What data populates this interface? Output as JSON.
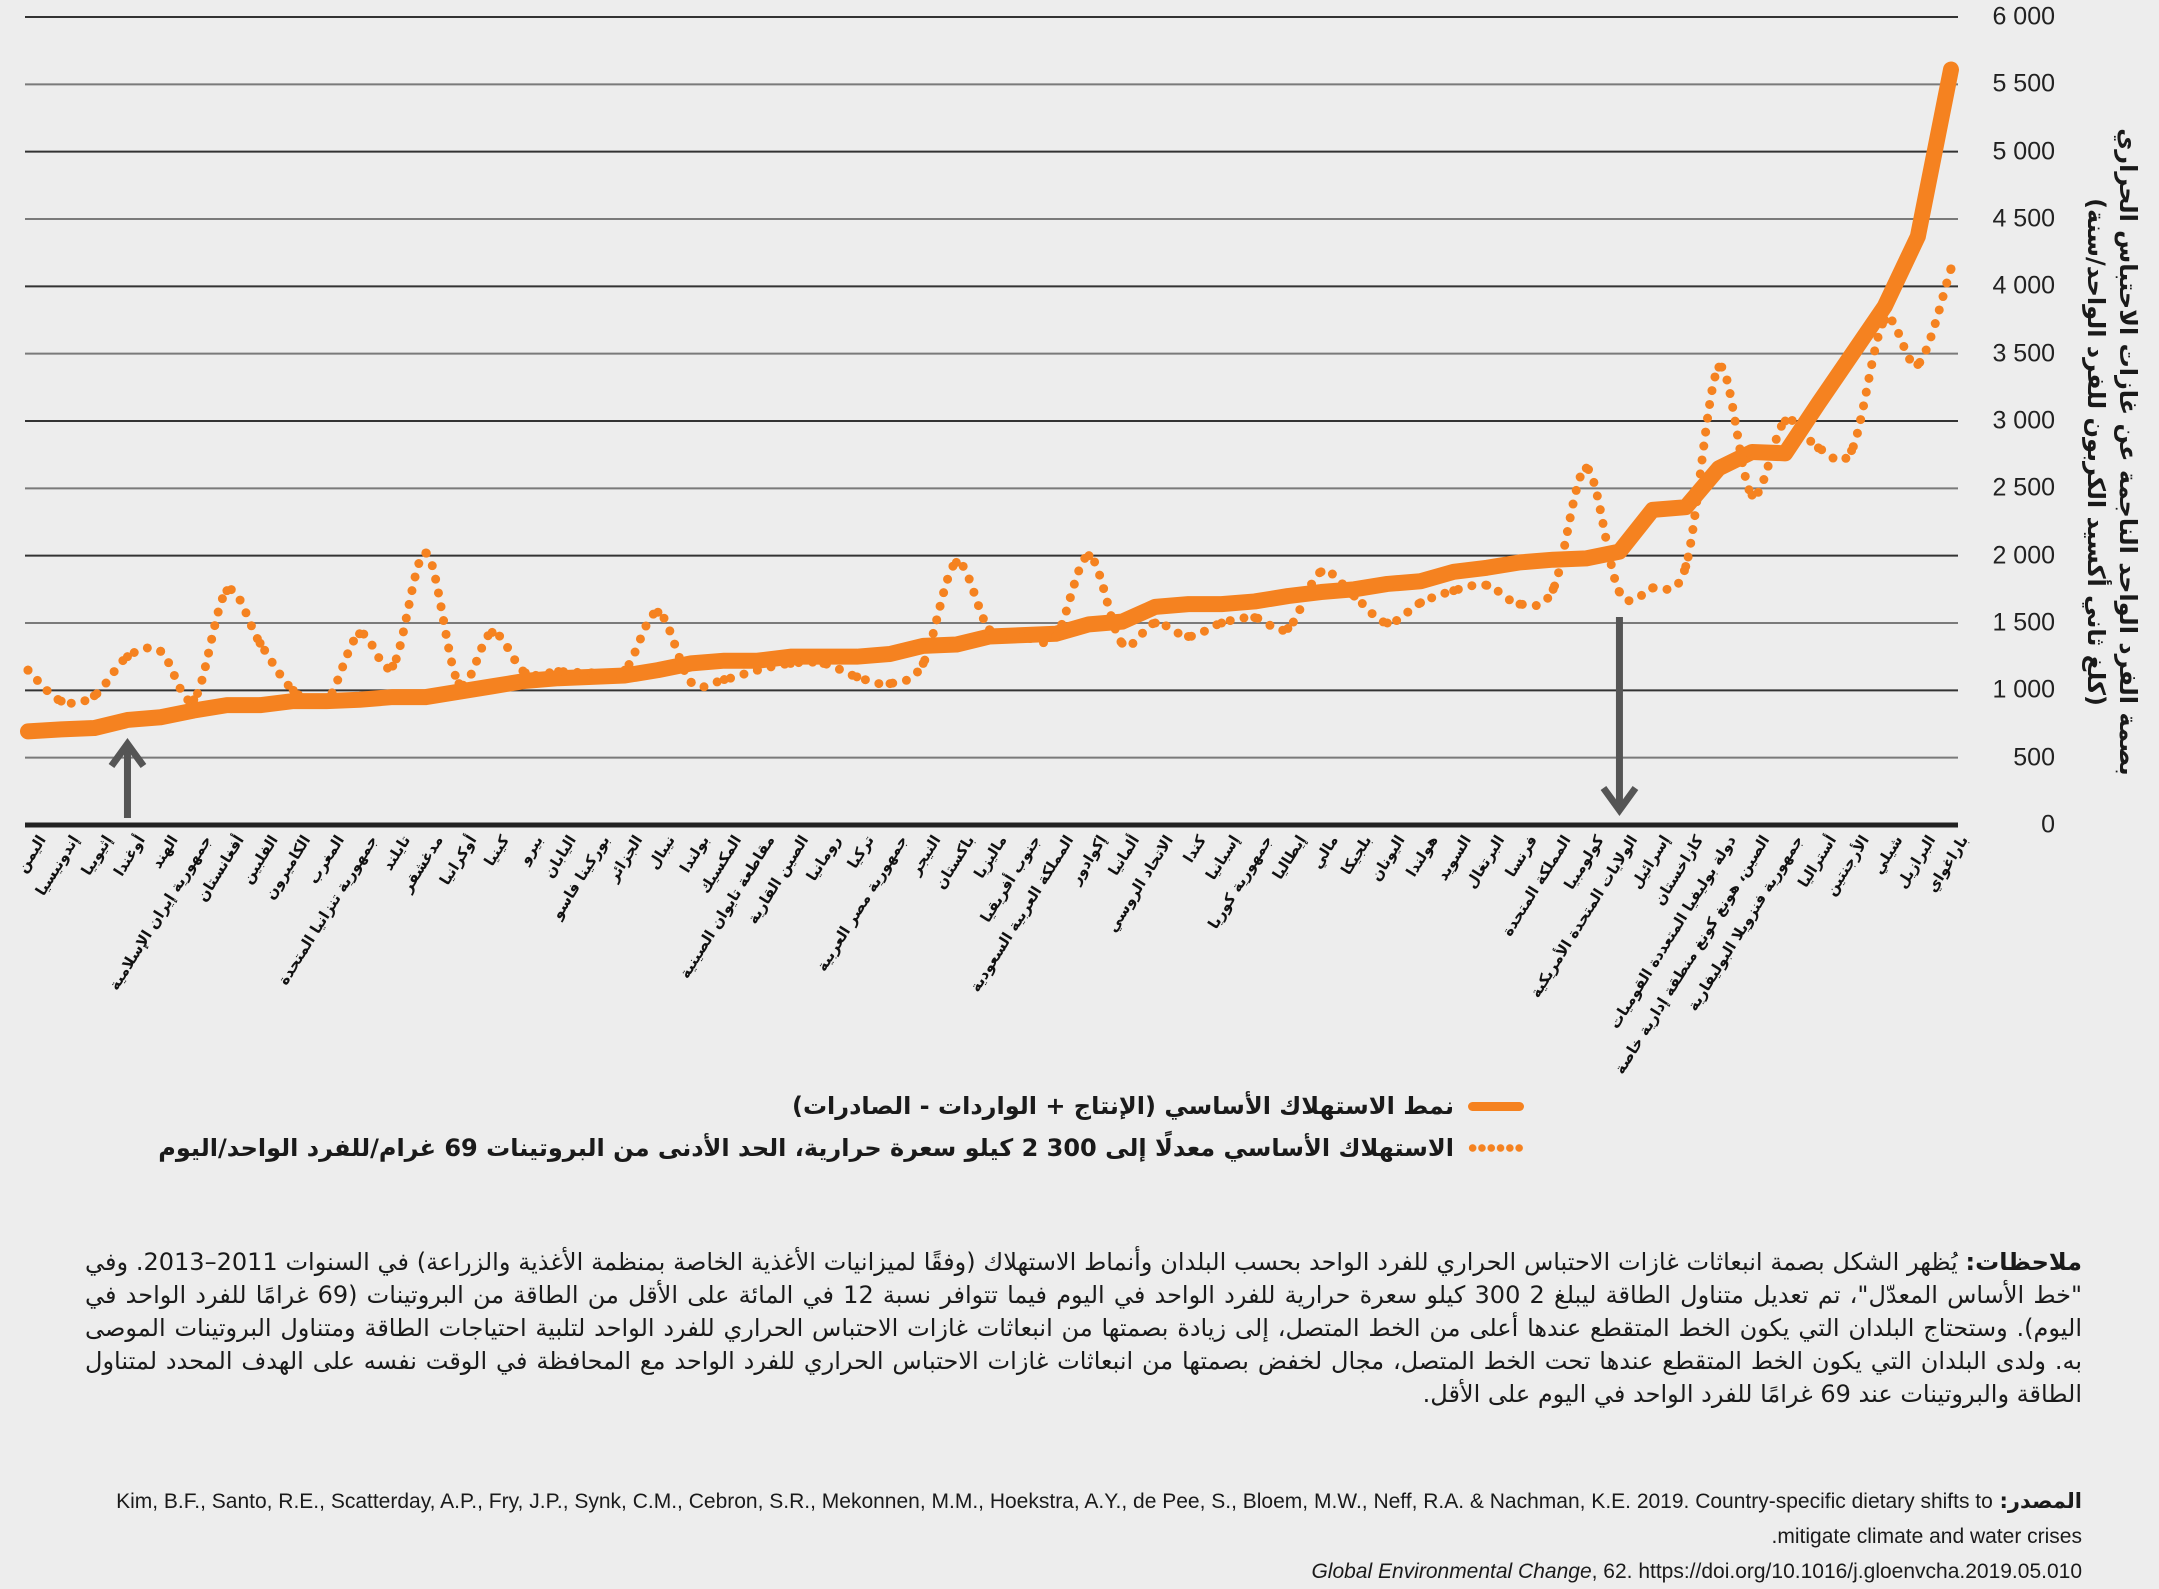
{
  "chart_data": {
    "type": "line",
    "ylabel_line1": "بصمة الفرد الواحد الناجمة عن غازات الاحتباس الحراري",
    "ylabel_line2": "(كلغ ثاني أكسيد الكربون للفرد الواحد/سنة)",
    "ylim": [
      0,
      6000
    ],
    "yticks": [
      "0",
      "500",
      "1 000",
      "1 500",
      "2 000",
      "2 500",
      "3 000",
      "3 500",
      "4 000",
      "4 500",
      "5 000",
      "5 500",
      "6 000"
    ],
    "grid": true,
    "axis_side": "right",
    "legend_placement": "bottom",
    "colors": {
      "series": "#f58220",
      "arrow": "#555555",
      "grid": "#7a7a7a"
    },
    "categories": [
      "اليمن",
      "إندونيسيا",
      "إثيوبيا",
      "أوغندا",
      "الهند",
      "جمهورية إيران الإسلامية",
      "أفغانستان",
      "الفلبين",
      "الكاميرون",
      "المغرب",
      "جمهورية تنزانيا المتحدة",
      "تايلند",
      "مدغشقر",
      "أوكرانيا",
      "كينيا",
      "بيرو",
      "اليابان",
      "بوركينا فاسو",
      "الجزائر",
      "نيبال",
      "بولندا",
      "المكسيك",
      "مقاطعة تايوان الصينية",
      "الصين القارية",
      "رومانيا",
      "تركيا",
      "جمهورية مصر العربية",
      "النيجر",
      "باكستان",
      "ماليزيا",
      "جنوب أفريقيا",
      "المملكة العربية السعودية",
      "إكوادور",
      "ألمانيا",
      "الاتحاد الروسي",
      "كندا",
      "إسبانيا",
      "جمهورية كوريا",
      "إيطاليا",
      "مالي",
      "بلجيكا",
      "اليونان",
      "هولندا",
      "السويد",
      "البرتغال",
      "فرنسا",
      "المملكة المتحدة",
      "كولومبيا",
      "الولايات المتحدة الأمريكية",
      "إسرائيل",
      "كازاخستان",
      "دولة بوليفيا المتعددة القوميات",
      "الصين، هونغ كونغ منطقة إدارية خاصة",
      "جمهورية فنزويلا البوليفارية",
      "أستراليا",
      "الأرجنتين",
      "شيلي",
      "البرازيل",
      "باراغواي"
    ],
    "series": [
      {
        "name": "نمط الاستهلاك الأساسي (الإنتاج + الواردات - الصادرات)",
        "style": "solid",
        "values": [
          695,
          710,
          720,
          780,
          800,
          850,
          890,
          890,
          920,
          920,
          930,
          950,
          950,
          990,
          1030,
          1070,
          1090,
          1100,
          1110,
          1150,
          1200,
          1220,
          1220,
          1250,
          1250,
          1250,
          1270,
          1330,
          1340,
          1400,
          1410,
          1420,
          1490,
          1510,
          1620,
          1640,
          1640,
          1660,
          1700,
          1730,
          1750,
          1790,
          1810,
          1880,
          1910,
          1950,
          1970,
          1980,
          2030,
          2340,
          2360,
          2650,
          2770,
          2760,
          3130,
          3490,
          3850,
          4370,
          5610
        ]
      },
      {
        "name": "الاستهلاك الأساسي معدلًا إلى 300 2 كيلو سعرة حرارية، الحد الأدنى من البروتينات 69 غرام/للفرد الواحد/اليوم",
        "style": "dotted",
        "values": [
          1150,
          920,
          960,
          1250,
          1290,
          930,
          1740,
          1350,
          1000,
          920,
          1420,
          1180,
          2020,
          1050,
          1430,
          1130,
          1140,
          1130,
          1150,
          1580,
          1060,
          1080,
          1150,
          1200,
          1200,
          1100,
          1050,
          1200,
          1950,
          1450,
          1400,
          1400,
          2000,
          1350,
          1500,
          1400,
          1500,
          1540,
          1460,
          1880,
          1700,
          1500,
          1650,
          1740,
          1780,
          1640,
          1750,
          2650,
          1730,
          1760,
          1920,
          3400,
          2450,
          3000,
          2800,
          2780,
          3750,
          3420,
          4130
        ]
      }
    ],
    "arrows": [
      {
        "category": "أوغندا",
        "direction": "up"
      },
      {
        "category": "الولايات المتحدة الأمريكية",
        "direction": "down"
      }
    ]
  },
  "notes": {
    "label": "ملاحظات:",
    "text": "يُظهر الشكل بصمة انبعاثات غازات الاحتباس الحراري للفرد الواحد بحسب البلدان وأنماط الاستهلاك (وفقًا لميزانيات الأغذية الخاصة بمنظمة الأغذية والزراعة) في السنوات 2011–2013. وفي \"خط الأساس المعدّل\"، تم تعديل متناول الطاقة ليبلغ 2 300 كيلو سعرة حرارية للفرد الواحد في اليوم فيما تتوافر نسبة 12 في المائة على الأقل من الطاقة من البروتينات (69 غرامًا للفرد الواحد في اليوم). وستحتاج البلدان التي يكون الخط المتقطع عندها أعلى من الخط المتصل، إلى زيادة بصمتها من انبعاثات غازات الاحتباس الحراري للفرد الواحد لتلبية احتياجات الطاقة ومتناول البروتينات الموصى به. ولدى البلدان التي يكون الخط المتقطع عندها تحت الخط المتصل، مجال لخفض بصمتها من انبعاثات غازات الاحتباس الحراري للفرد الواحد مع المحافظة في الوقت نفسه على الهدف المحدد لمتناول الطاقة والبروتينات عند 69 غرامًا للفرد الواحد في اليوم على الأقل."
  },
  "source": {
    "label": "المصدر:",
    "line1": "Kim, B.F., Santo, R.E., Scatterday, A.P., Fry, J.P., Synk, C.M., Cebron, S.R., Mekonnen, M.M., Hoekstra, A.Y., de Pee, S., Bloem, M.W., Neff, R.A. & Nachman, K.E. 2019. Country-specific dietary shifts to mitigate climate and water crises.",
    "line2_journal": "Global Environmental Change",
    "line2_rest": ", 62. https://doi.org/10.1016/j.gloenvcha.2019.05.010"
  }
}
